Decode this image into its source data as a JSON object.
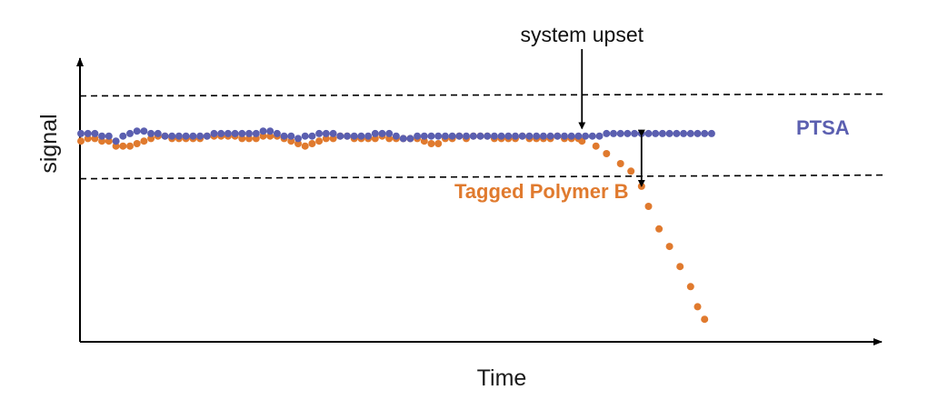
{
  "chart_data": {
    "type": "scatter",
    "xlabel": "Time",
    "ylabel": "signal",
    "ylim": [
      0,
      1
    ],
    "xlim": [
      0,
      1
    ],
    "grid": false,
    "series": [
      {
        "name": "PTSA",
        "color": "#5b5fb0",
        "x": [
          0.0,
          0.01,
          0.02,
          0.03,
          0.04,
          0.05,
          0.06,
          0.07,
          0.08,
          0.09,
          0.1,
          0.11,
          0.12,
          0.13,
          0.14,
          0.15,
          0.16,
          0.17,
          0.18,
          0.19,
          0.2,
          0.21,
          0.22,
          0.23,
          0.24,
          0.25,
          0.26,
          0.27,
          0.28,
          0.29,
          0.3,
          0.31,
          0.32,
          0.33,
          0.34,
          0.35,
          0.36,
          0.37,
          0.38,
          0.39,
          0.4,
          0.41,
          0.42,
          0.43,
          0.44,
          0.45,
          0.46,
          0.47,
          0.48,
          0.49,
          0.5,
          0.51,
          0.52,
          0.53,
          0.54,
          0.55,
          0.56,
          0.57,
          0.58,
          0.59,
          0.6,
          0.61,
          0.62,
          0.63,
          0.64,
          0.65,
          0.66,
          0.67,
          0.68,
          0.69,
          0.7,
          0.71,
          0.72,
          0.73,
          0.74,
          0.75,
          0.76,
          0.77,
          0.78,
          0.79,
          0.8,
          0.81,
          0.82,
          0.83,
          0.84,
          0.85,
          0.86,
          0.87,
          0.88,
          0.89,
          0.9
        ],
        "y": [
          0.83,
          0.83,
          0.83,
          0.82,
          0.82,
          0.8,
          0.82,
          0.83,
          0.84,
          0.84,
          0.83,
          0.83,
          0.82,
          0.82,
          0.82,
          0.82,
          0.82,
          0.82,
          0.82,
          0.83,
          0.83,
          0.83,
          0.83,
          0.83,
          0.83,
          0.83,
          0.84,
          0.84,
          0.83,
          0.82,
          0.82,
          0.81,
          0.82,
          0.82,
          0.83,
          0.83,
          0.83,
          0.82,
          0.82,
          0.82,
          0.82,
          0.82,
          0.83,
          0.83,
          0.83,
          0.82,
          0.81,
          0.81,
          0.82,
          0.82,
          0.82,
          0.82,
          0.82,
          0.82,
          0.82,
          0.82,
          0.82,
          0.82,
          0.82,
          0.82,
          0.82,
          0.82,
          0.82,
          0.82,
          0.82,
          0.82,
          0.82,
          0.82,
          0.82,
          0.82,
          0.82,
          0.82,
          0.82,
          0.82,
          0.82,
          0.83,
          0.83,
          0.83,
          0.83,
          0.83,
          0.83,
          0.83,
          0.83,
          0.83,
          0.83,
          0.83,
          0.83,
          0.83,
          0.83,
          0.83,
          0.83
        ]
      },
      {
        "name": "Tagged Polymer B",
        "color": "#e07a2e",
        "x": [
          0.0,
          0.01,
          0.02,
          0.03,
          0.04,
          0.05,
          0.06,
          0.07,
          0.08,
          0.09,
          0.1,
          0.11,
          0.12,
          0.13,
          0.14,
          0.15,
          0.16,
          0.17,
          0.18,
          0.19,
          0.2,
          0.21,
          0.22,
          0.23,
          0.24,
          0.25,
          0.26,
          0.27,
          0.28,
          0.29,
          0.3,
          0.31,
          0.32,
          0.33,
          0.34,
          0.35,
          0.36,
          0.37,
          0.38,
          0.39,
          0.4,
          0.41,
          0.42,
          0.43,
          0.44,
          0.45,
          0.46,
          0.47,
          0.48,
          0.49,
          0.5,
          0.51,
          0.52,
          0.53,
          0.54,
          0.55,
          0.56,
          0.57,
          0.58,
          0.59,
          0.6,
          0.61,
          0.62,
          0.63,
          0.64,
          0.65,
          0.66,
          0.67,
          0.68,
          0.69,
          0.7,
          0.71,
          0.715,
          0.735,
          0.75,
          0.77,
          0.785,
          0.8,
          0.81,
          0.825,
          0.84,
          0.855,
          0.87,
          0.88,
          0.89
        ],
        "y": [
          0.8,
          0.81,
          0.81,
          0.8,
          0.8,
          0.78,
          0.78,
          0.78,
          0.79,
          0.8,
          0.81,
          0.82,
          0.82,
          0.81,
          0.81,
          0.81,
          0.81,
          0.81,
          0.82,
          0.82,
          0.82,
          0.82,
          0.82,
          0.81,
          0.81,
          0.81,
          0.82,
          0.82,
          0.82,
          0.81,
          0.8,
          0.79,
          0.78,
          0.79,
          0.8,
          0.81,
          0.81,
          0.82,
          0.82,
          0.81,
          0.81,
          0.81,
          0.81,
          0.82,
          0.81,
          0.81,
          0.81,
          0.81,
          0.81,
          0.8,
          0.79,
          0.79,
          0.81,
          0.81,
          0.82,
          0.81,
          0.82,
          0.82,
          0.82,
          0.81,
          0.81,
          0.81,
          0.81,
          0.82,
          0.81,
          0.81,
          0.81,
          0.81,
          0.82,
          0.81,
          0.81,
          0.81,
          0.8,
          0.78,
          0.75,
          0.71,
          0.68,
          0.62,
          0.54,
          0.45,
          0.38,
          0.3,
          0.22,
          0.14,
          0.09
        ]
      }
    ],
    "reference_lines": [
      {
        "y": 0.98,
        "style": "dashed"
      },
      {
        "y": 0.65,
        "style": "dashed"
      }
    ],
    "annotations": [
      {
        "text": "system upset",
        "x": 0.715,
        "arrow": "down"
      },
      {
        "text": "Tagged Polymer B"
      },
      {
        "text": "PTSA"
      }
    ],
    "gap_arrow": {
      "x": 0.8,
      "y_top": 0.82,
      "y_bottom": 0.62,
      "style": "double-headed"
    }
  }
}
